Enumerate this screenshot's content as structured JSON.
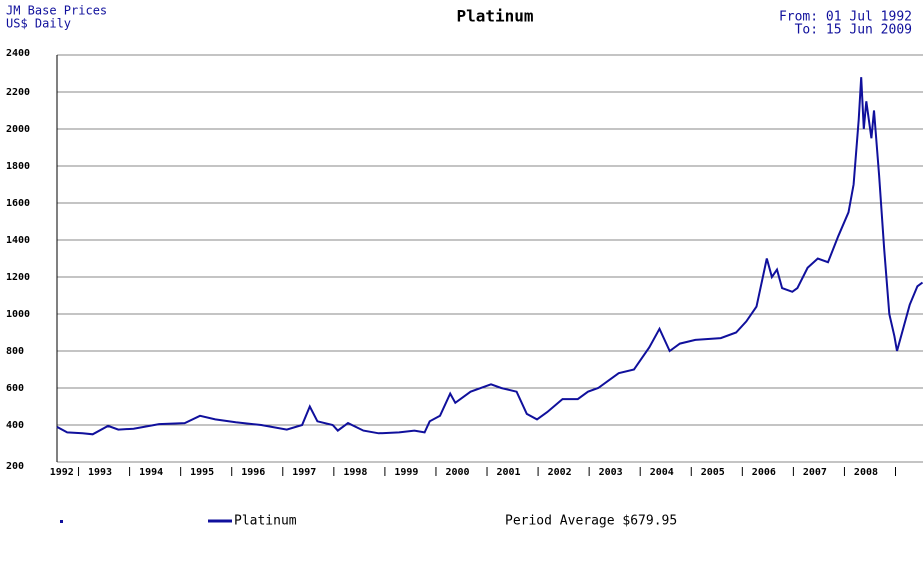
{
  "chart_data": {
    "type": "line",
    "title": "Platinum",
    "source": "JM Base Prices",
    "unit": "US$ Daily",
    "date_from": "From: 01 Jul 1992",
    "date_to": "To: 15 Jun 2009",
    "average": "Period Average $679.95",
    "x": [
      1992.5,
      1992.7,
      1993.0,
      1993.2,
      1993.5,
      1993.7,
      1994.0,
      1994.5,
      1995.0,
      1995.3,
      1995.6,
      1996.0,
      1996.5,
      1997.0,
      1997.3,
      1997.45,
      1997.6,
      1997.9,
      1998.0,
      1998.2,
      1998.5,
      1998.8,
      1999.2,
      1999.5,
      1999.7,
      1999.8,
      2000.0,
      2000.2,
      2000.3,
      2000.6,
      2001.0,
      2001.2,
      2001.5,
      2001.7,
      2001.9,
      2002.1,
      2002.4,
      2002.7,
      2002.9,
      2003.1,
      2003.3,
      2003.5,
      2003.8,
      2004.1,
      2004.3,
      2004.5,
      2004.7,
      2005.0,
      2005.5,
      2005.8,
      2006.0,
      2006.2,
      2006.4,
      2006.5,
      2006.6,
      2006.7,
      2006.9,
      2007.0,
      2007.2,
      2007.4,
      2007.6,
      2007.8,
      2008.0,
      2008.1,
      2008.2,
      2008.25,
      2008.3,
      2008.35,
      2008.45,
      2008.5,
      2008.6,
      2008.7,
      2008.8,
      2008.9,
      2008.95,
      2009.05,
      2009.2,
      2009.35,
      2009.45
    ],
    "series": [
      {
        "name": "Platinum",
        "color": "#10109c",
        "values": [
          390,
          360,
          355,
          350,
          395,
          375,
          380,
          405,
          410,
          450,
          430,
          415,
          400,
          375,
          400,
          500,
          420,
          400,
          370,
          410,
          370,
          355,
          360,
          370,
          360,
          420,
          450,
          570,
          520,
          580,
          620,
          600,
          580,
          460,
          430,
          470,
          540,
          540,
          580,
          600,
          640,
          680,
          700,
          820,
          920,
          800,
          840,
          860,
          870,
          900,
          960,
          1040,
          1300,
          1200,
          1240,
          1140,
          1120,
          1140,
          1250,
          1300,
          1280,
          1420,
          1550,
          1700,
          2050,
          2280,
          2000,
          2150,
          1950,
          2100,
          1750,
          1350,
          1000,
          880,
          800,
          900,
          1050,
          1150,
          1170
        ]
      }
    ],
    "xlim": [
      1992.5,
      2009.46
    ],
    "xticks": [
      1992,
      1993,
      1994,
      1995,
      1996,
      1997,
      1998,
      1999,
      2000,
      2001,
      2002,
      2003,
      2004,
      2005,
      2006,
      2007,
      2008
    ],
    "ylim": [
      200,
      2400
    ],
    "yticks": [
      200,
      400,
      600,
      800,
      1000,
      1200,
      1400,
      1600,
      1800,
      2000,
      2200,
      2400
    ],
    "grid": true
  }
}
